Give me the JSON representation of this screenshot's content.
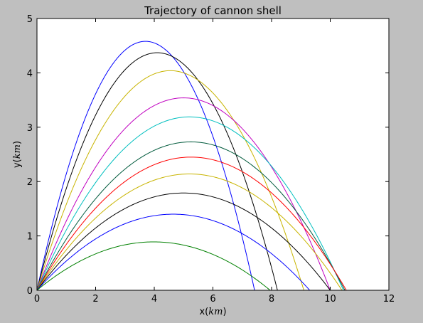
{
  "chart_data": {
    "type": "line",
    "title": "Trajectory of cannon shell",
    "xlabel": "x(km)",
    "ylabel": "y(km)",
    "xlabel_parts": {
      "prefix": "x(",
      "unit": "km",
      "suffix": ")"
    },
    "ylabel_parts": {
      "prefix": "y(",
      "unit": "km",
      "suffix": ")"
    },
    "xlim": [
      0,
      12
    ],
    "ylim": [
      0,
      5
    ],
    "xticks": [
      "0",
      "2",
      "4",
      "6",
      "8",
      "10",
      "12"
    ],
    "yticks": [
      "0",
      "1",
      "2",
      "3",
      "4",
      "5"
    ],
    "grid": false,
    "legend": false,
    "series": [
      {
        "color": "#0000ff",
        "apex_x": 3.7,
        "apex_y": 4.58,
        "x_land": 7.42
      },
      {
        "color": "#000000",
        "apex_x": 4.1,
        "apex_y": 4.37,
        "x_land": 8.2
      },
      {
        "color": "#c8b400",
        "apex_x": 4.55,
        "apex_y": 4.04,
        "x_land": 9.1
      },
      {
        "color": "#c000c0",
        "apex_x": 5.0,
        "apex_y": 3.54,
        "x_land": 10.0
      },
      {
        "color": "#00bfbf",
        "apex_x": 5.2,
        "apex_y": 3.19,
        "x_land": 10.45
      },
      {
        "color": "#005a3c",
        "apex_x": 5.25,
        "apex_y": 2.73,
        "x_land": 10.5
      },
      {
        "color": "#ff0000",
        "apex_x": 5.25,
        "apex_y": 2.45,
        "x_land": 10.55
      },
      {
        "color": "#c8b400",
        "apex_x": 5.2,
        "apex_y": 2.14,
        "x_land": 10.4
      },
      {
        "color": "#000000",
        "apex_x": 5.0,
        "apex_y": 1.79,
        "x_land": 10.0
      },
      {
        "color": "#0000ff",
        "apex_x": 4.65,
        "apex_y": 1.4,
        "x_land": 9.3
      },
      {
        "color": "#008000",
        "apex_x": 3.98,
        "apex_y": 0.89,
        "x_land": 7.95
      }
    ]
  }
}
